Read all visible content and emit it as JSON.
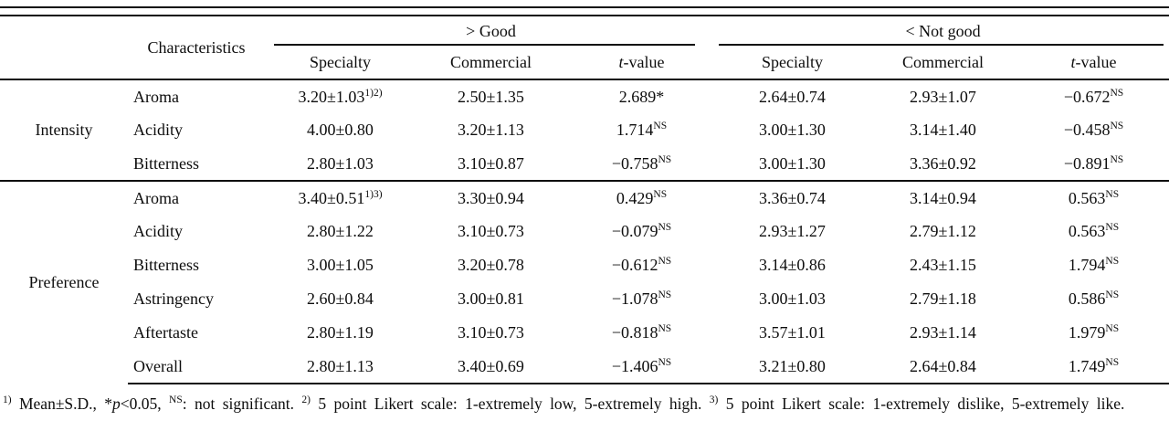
{
  "table": {
    "header": {
      "characteristics": "Characteristics",
      "good": "> Good",
      "not_good": "< Not good",
      "sub": {
        "specialty": "Specialty",
        "commercial": "Commercial",
        "tvalue_t": "t",
        "tvalue_rest": "-value"
      }
    },
    "groups": [
      {
        "name": "Intensity",
        "rows": [
          {
            "char": "Aroma",
            "gs": "3.20±1.03",
            "gs_sup": "1)2)",
            "gc": "2.50±1.35",
            "gt": "2.689*",
            "gt_sup": "",
            "ns": "2.64±0.74",
            "nc": "2.93±1.07",
            "nt": "−0.672",
            "nt_sup": "NS"
          },
          {
            "char": "Acidity",
            "gs": "4.00±0.80",
            "gs_sup": "",
            "gc": "3.20±1.13",
            "gt": "1.714",
            "gt_sup": "NS",
            "ns": "3.00±1.30",
            "nc": "3.14±1.40",
            "nt": "−0.458",
            "nt_sup": "NS"
          },
          {
            "char": "Bitterness",
            "gs": "2.80±1.03",
            "gs_sup": "",
            "gc": "3.10±0.87",
            "gt": "−0.758",
            "gt_sup": "NS",
            "ns": "3.00±1.30",
            "nc": "3.36±0.92",
            "nt": "−0.891",
            "nt_sup": "NS"
          }
        ]
      },
      {
        "name": "Preference",
        "rows": [
          {
            "char": "Aroma",
            "gs": "3.40±0.51",
            "gs_sup": "1)3)",
            "gc": "3.30±0.94",
            "gt": "0.429",
            "gt_sup": "NS",
            "ns": "3.36±0.74",
            "nc": "3.14±0.94",
            "nt": "0.563",
            "nt_sup": "NS"
          },
          {
            "char": "Acidity",
            "gs": "2.80±1.22",
            "gs_sup": "",
            "gc": "3.10±0.73",
            "gt": "−0.079",
            "gt_sup": "NS",
            "ns": "2.93±1.27",
            "nc": "2.79±1.12",
            "nt": "0.563",
            "nt_sup": "NS"
          },
          {
            "char": "Bitterness",
            "gs": "3.00±1.05",
            "gs_sup": "",
            "gc": "3.20±0.78",
            "gt": "−0.612",
            "gt_sup": "NS",
            "ns": "3.14±0.86",
            "nc": "2.43±1.15",
            "nt": "1.794",
            "nt_sup": "NS"
          },
          {
            "char": "Astringency",
            "gs": "2.60±0.84",
            "gs_sup": "",
            "gc": "3.00±0.81",
            "gt": "−1.078",
            "gt_sup": "NS",
            "ns": "3.00±1.03",
            "nc": "2.79±1.18",
            "nt": "0.586",
            "nt_sup": "NS"
          },
          {
            "char": "Aftertaste",
            "gs": "2.80±1.19",
            "gs_sup": "",
            "gc": "3.10±0.73",
            "gt": "−0.818",
            "gt_sup": "NS",
            "ns": "3.57±1.01",
            "nc": "2.93±1.14",
            "nt": "1.979",
            "nt_sup": "NS"
          },
          {
            "char": "Overall",
            "gs": "2.80±1.13",
            "gs_sup": "",
            "gc": "3.40±0.69",
            "gt": "−1.406",
            "gt_sup": "NS",
            "ns": "3.21±0.80",
            "nc": "2.64±0.84",
            "nt": "1.749",
            "nt_sup": "NS"
          }
        ]
      }
    ]
  },
  "footnote": {
    "sup1": "1)",
    "seg1": " Mean±S.D., *",
    "p_italic": "p",
    "seg2": "<0.05, ",
    "supNS": "NS",
    "seg3": ": not significant. ",
    "sup2": "2)",
    "seg4": " 5 point Likert scale: 1-extremely low, 5-extremely high. ",
    "sup3": "3)",
    "seg5": " 5 point Likert scale: 1-extremely dislike, 5-extremely like."
  }
}
